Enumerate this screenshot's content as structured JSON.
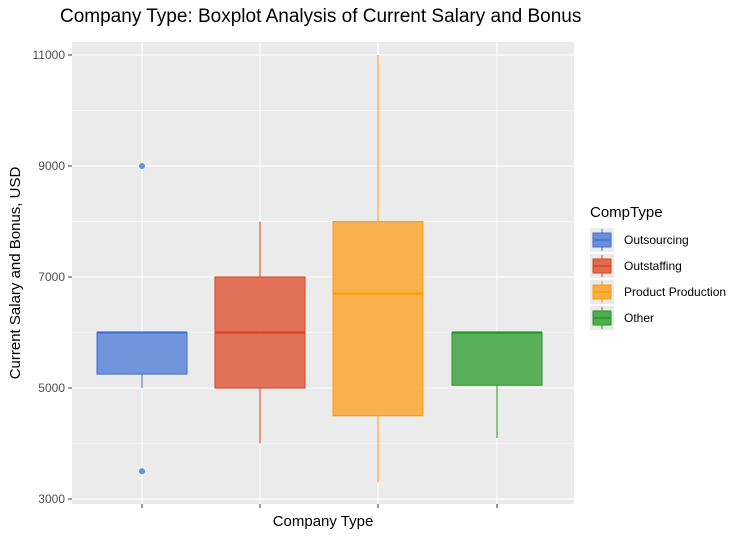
{
  "chart_data": {
    "type": "boxplot",
    "title": "Company Type: Boxplot Analysis of Current Salary and Bonus",
    "xlabel": "Company Type",
    "ylabel": "Current Salary and Bonus, USD",
    "ylim": [
      2900,
      11200
    ],
    "yticks": [
      3000,
      5000,
      7000,
      9000,
      11000
    ],
    "x_tick_labels": [
      "",
      "",
      "",
      ""
    ],
    "grid": true,
    "legend": {
      "title": "CompType",
      "position": "right"
    },
    "series": [
      {
        "name": "Outsourcing",
        "color": "#3f6fd1",
        "fill": "#6a90da",
        "whisker_low": 5000,
        "q1": 5250,
        "median": 6000,
        "q3": 6000,
        "whisker_high": 6000,
        "outliers": [
          9000,
          3500
        ]
      },
      {
        "name": "Outstaffing",
        "color": "#d9431e",
        "fill": "#e06b50",
        "whisker_low": 4000,
        "q1": 5000,
        "median": 6000,
        "q3": 7000,
        "whisker_high": 8000,
        "outliers": []
      },
      {
        "name": "Product Production",
        "color": "#ff9a0d",
        "fill": "#f8ae45",
        "whisker_low": 3300,
        "q1": 4500,
        "median": 6700,
        "q3": 8000,
        "whisker_high": 11000,
        "outliers": []
      },
      {
        "name": "Other",
        "color": "#1f9a1f",
        "fill": "#52ad52",
        "whisker_low": 4100,
        "q1": 5050,
        "median": 6000,
        "q3": 6000,
        "whisker_high": 6000,
        "outliers": []
      }
    ]
  }
}
